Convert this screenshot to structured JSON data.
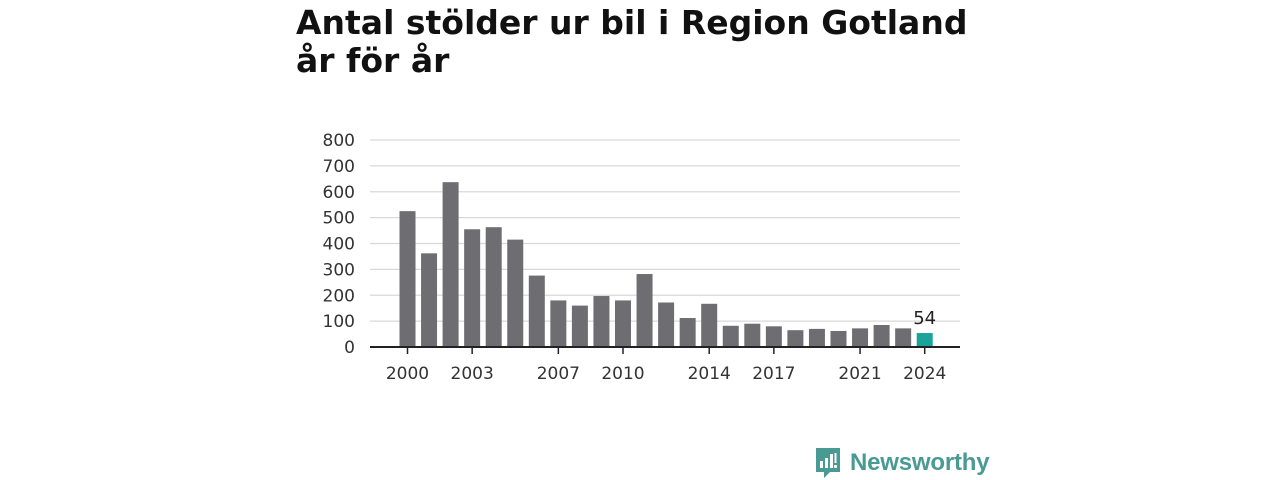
{
  "title": "Antal stölder ur bil i Region Gotland år för år",
  "brand": {
    "name": "Newsworthy",
    "icon": "newsworthy-logo-icon",
    "color": "#4a9a94"
  },
  "colors": {
    "bar": "#6e6d72",
    "highlight": "#1aa39a",
    "grid": "#d9d9d9",
    "axis": "#222222"
  },
  "chart_data": {
    "type": "bar",
    "title": "Antal stölder ur bil i Region Gotland år för år",
    "xlabel": "",
    "ylabel": "",
    "categories": [
      2000,
      2001,
      2002,
      2003,
      2004,
      2005,
      2006,
      2007,
      2008,
      2009,
      2010,
      2011,
      2012,
      2013,
      2014,
      2015,
      2016,
      2017,
      2018,
      2019,
      2020,
      2021,
      2022,
      2023,
      2024
    ],
    "values": [
      525,
      362,
      637,
      455,
      463,
      415,
      276,
      180,
      160,
      197,
      180,
      282,
      172,
      112,
      167,
      82,
      90,
      80,
      65,
      70,
      62,
      72,
      85,
      72,
      54
    ],
    "highlight_index": 24,
    "data_labels": [
      {
        "category": 2024,
        "text": "54"
      }
    ],
    "x_tick_labels": [
      "2000",
      "2003",
      "2007",
      "2010",
      "2014",
      "2017",
      "2021",
      "2024"
    ],
    "y_ticks": [
      0,
      100,
      200,
      300,
      400,
      500,
      600,
      700,
      800
    ],
    "ylim": [
      0,
      800
    ],
    "grid": true,
    "legend": "none"
  }
}
